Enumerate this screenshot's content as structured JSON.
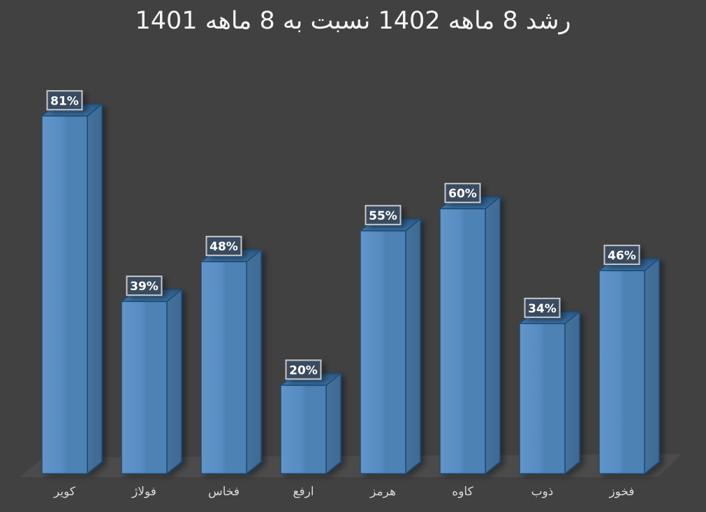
{
  "chart_data": {
    "type": "bar",
    "style": "3d-column",
    "title": "رشد 8 ماهه 1402 نسبت به 8 ماهه 1401",
    "categories": [
      "کویر",
      "فولاژ",
      "فخاس",
      "ارفع",
      "هرمز",
      "کاوه",
      "ذوب",
      "فخوز"
    ],
    "values": [
      81,
      39,
      48,
      20,
      55,
      60,
      34,
      46
    ],
    "data_labels": [
      "81%",
      "39%",
      "48%",
      "20%",
      "55%",
      "60%",
      "34%",
      "46%"
    ],
    "unit": "%",
    "ylim": [
      0,
      90
    ],
    "grid": false,
    "legend": false,
    "axes_visible": false,
    "colors": {
      "background": "#414141",
      "floor": "#4B4B4B",
      "bar_front_light": "#6195CA",
      "bar_front": "#568CC1",
      "bar_front_dark": "#4E82B4",
      "bar_top_back": "#2A5580",
      "bar_top_front": "#3E74A7",
      "bar_side": "#45719B",
      "bar_side_dark": "#3E6A94",
      "bar_outline": "#1E4C76",
      "label_box_fill": "#3A4B5E",
      "label_box_border": "#C6C9CC",
      "label_text": "#FFFFFF",
      "category_text": "#D9D9D9",
      "title_text": "#F5F5F5"
    }
  }
}
